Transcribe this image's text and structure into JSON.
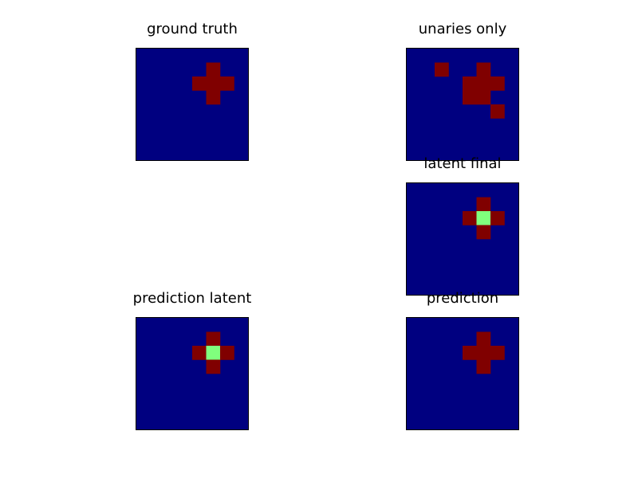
{
  "colors": {
    "background": "#000080",
    "class_1": "#800000",
    "class_2": "#80ff7d",
    "axes_border": "#000000"
  },
  "chart_data": [
    {
      "type": "heatmap",
      "title": "ground truth",
      "grid": false,
      "size": [
        8,
        8
      ],
      "cells": [
        {
          "row": 1,
          "col": 5,
          "value": 1
        },
        {
          "row": 2,
          "col": 4,
          "value": 1
        },
        {
          "row": 2,
          "col": 5,
          "value": 1
        },
        {
          "row": 2,
          "col": 6,
          "value": 1
        },
        {
          "row": 3,
          "col": 5,
          "value": 1
        }
      ]
    },
    {
      "type": "heatmap",
      "title": "unaries only",
      "grid": false,
      "size": [
        8,
        8
      ],
      "cells": [
        {
          "row": 1,
          "col": 2,
          "value": 1
        },
        {
          "row": 1,
          "col": 5,
          "value": 1
        },
        {
          "row": 2,
          "col": 4,
          "value": 1
        },
        {
          "row": 2,
          "col": 5,
          "value": 1
        },
        {
          "row": 2,
          "col": 6,
          "value": 1
        },
        {
          "row": 3,
          "col": 4,
          "value": 1
        },
        {
          "row": 3,
          "col": 5,
          "value": 1
        },
        {
          "row": 4,
          "col": 6,
          "value": 1
        }
      ]
    },
    {
      "type": "heatmap",
      "title": "latent final",
      "grid": false,
      "size": [
        8,
        8
      ],
      "cells": [
        {
          "row": 1,
          "col": 5,
          "value": 1
        },
        {
          "row": 2,
          "col": 4,
          "value": 1
        },
        {
          "row": 2,
          "col": 5,
          "value": 2
        },
        {
          "row": 2,
          "col": 6,
          "value": 1
        },
        {
          "row": 3,
          "col": 5,
          "value": 1
        }
      ]
    },
    {
      "type": "heatmap",
      "title": "prediction latent",
      "grid": false,
      "size": [
        8,
        8
      ],
      "cells": [
        {
          "row": 1,
          "col": 5,
          "value": 1
        },
        {
          "row": 2,
          "col": 4,
          "value": 1
        },
        {
          "row": 2,
          "col": 5,
          "value": 2
        },
        {
          "row": 2,
          "col": 6,
          "value": 1
        },
        {
          "row": 3,
          "col": 5,
          "value": 1
        }
      ]
    },
    {
      "type": "heatmap",
      "title": "prediction",
      "grid": false,
      "size": [
        8,
        8
      ],
      "cells": [
        {
          "row": 1,
          "col": 5,
          "value": 1
        },
        {
          "row": 2,
          "col": 4,
          "value": 1
        },
        {
          "row": 2,
          "col": 5,
          "value": 1
        },
        {
          "row": 2,
          "col": 6,
          "value": 1
        },
        {
          "row": 3,
          "col": 5,
          "value": 1
        }
      ]
    }
  ]
}
